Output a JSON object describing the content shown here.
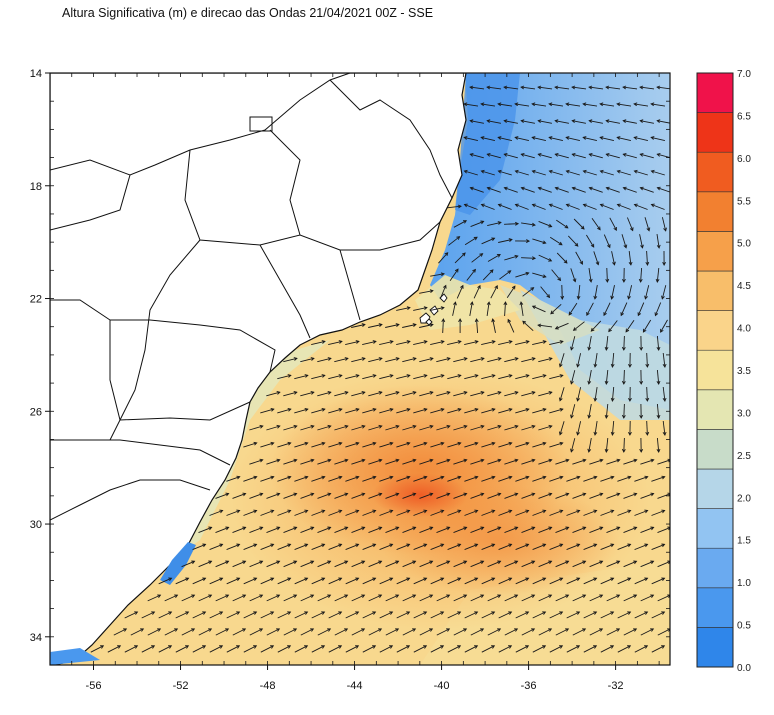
{
  "title": "Altura Significativa (m) e direcao das Ondas 21/04/2021 00Z - SSE",
  "map": {
    "lon_range": [
      -58,
      -29.5
    ],
    "lat_range": [
      14,
      35
    ],
    "lon_ticks": [
      "-56",
      "-52",
      "-48",
      "-44",
      "-40",
      "-36",
      "-32"
    ],
    "lat_ticks": [
      "14",
      "18",
      "22",
      "26",
      "30",
      "34"
    ],
    "variable": "significant wave height",
    "units": "m"
  },
  "colorbar": {
    "ticks": [
      "0.0",
      "0.5",
      "1.0",
      "1.5",
      "2.0",
      "2.5",
      "3.0",
      "3.5",
      "4.0",
      "4.5",
      "5.0",
      "5.5",
      "6.0",
      "6.5",
      "7.0"
    ],
    "colors": [
      "#2f86ea",
      "#4a98ee",
      "#6aaaf0",
      "#92c4f2",
      "#b5d6e8",
      "#c8dcc9",
      "#e4e6b2",
      "#f6e39a",
      "#fad48a",
      "#f8be6a",
      "#f6a04a",
      "#f28030",
      "#f05c20",
      "#ee3418",
      "#f0124a"
    ]
  }
}
